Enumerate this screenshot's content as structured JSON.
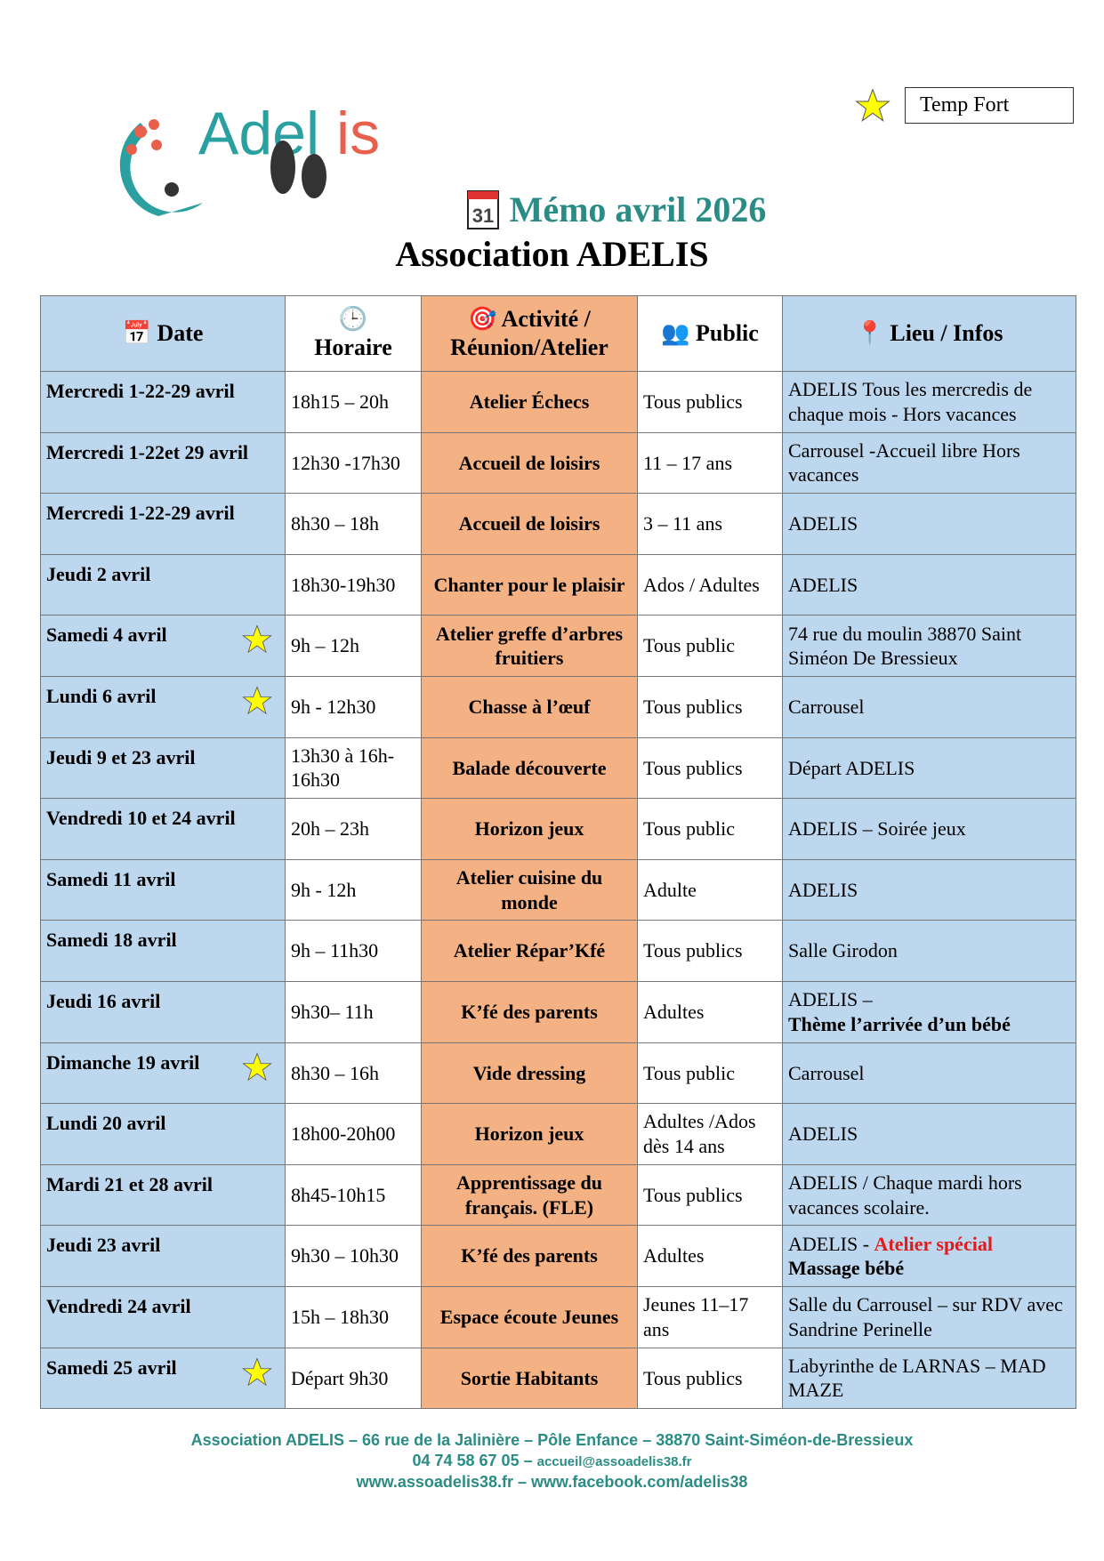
{
  "legend": {
    "label": "Temp Fort",
    "icon": "star-icon"
  },
  "logo": {
    "text": "Adelis"
  },
  "header": {
    "title": "Mémo avril 2026",
    "calendar_day": "31",
    "subtitle": "Association ADELIS"
  },
  "table": {
    "columns": [
      {
        "label": "Date",
        "icon": "calendar-icon"
      },
      {
        "label": "Horaire",
        "icon": "clock-icon"
      },
      {
        "label": "Activité / Réunion/Atelier",
        "icon": "target-icon"
      },
      {
        "label": "Public",
        "icon": "people-icon"
      },
      {
        "label": "Lieu / Infos",
        "icon": "pin-icon"
      }
    ],
    "rows": [
      {
        "date": "Mercredi 1-22-29 avril",
        "time": "18h15 – 20h",
        "activity": "Atelier Échecs",
        "public": "Tous publics",
        "place": "ADELIS Tous les mercredis de chaque mois - Hors vacances",
        "star": false
      },
      {
        "date": "Mercredi 1-22et 29 avril",
        "time": "12h30 -17h30",
        "activity": "Accueil de loisirs",
        "public": "11 – 17 ans",
        "place": "Carrousel -Accueil libre Hors vacances",
        "star": false
      },
      {
        "date": "Mercredi 1-22-29 avril",
        "time": "8h30 – 18h",
        "activity": "Accueil de loisirs",
        "public": "3 – 11 ans",
        "place": "ADELIS",
        "star": false
      },
      {
        "date": "Jeudi 2 avril",
        "time": "18h30-19h30",
        "activity": "Chanter pour le plaisir",
        "public": "Ados / Adultes",
        "place": "ADELIS",
        "star": false
      },
      {
        "date": "Samedi 4 avril",
        "time": "9h – 12h",
        "activity": "Atelier greffe d’arbres fruitiers",
        "public": "Tous public",
        "place": "74 rue du moulin 38870 Saint Siméon De Bressieux",
        "star": true
      },
      {
        "date": "Lundi 6 avril",
        "time": "9h - 12h30",
        "activity": "Chasse à l’œuf",
        "public": "Tous publics",
        "place": "Carrousel",
        "star": true
      },
      {
        "date": "Jeudi 9 et 23 avril",
        "time": "13h30 à 16h-16h30",
        "activity": "Balade découverte",
        "public": "Tous publics",
        "place": "Départ ADELIS",
        "star": false
      },
      {
        "date": "Vendredi 10 et 24 avril",
        "time": "20h – 23h",
        "activity": "Horizon jeux",
        "public": "Tous public",
        "place": "ADELIS – Soirée jeux",
        "star": false
      },
      {
        "date": "Samedi 11 avril",
        "time": "9h - 12h",
        "activity": "Atelier cuisine du monde",
        "public": "Adulte",
        "place": "ADELIS",
        "star": false
      },
      {
        "date": "Samedi 18 avril",
        "time": "9h – 11h30",
        "activity": "Atelier Répar’Kfé",
        "public": "Tous publics",
        "place": "Salle Girodon",
        "star": false
      },
      {
        "date": "Jeudi 16 avril",
        "time": "9h30– 11h",
        "activity": "K’fé des parents",
        "public": "Adultes",
        "place": "ADELIS –",
        "place_bold": "Thème l’arrivée d’un bébé",
        "star": false
      },
      {
        "date": "Dimanche 19 avril",
        "time": "8h30 – 16h",
        "activity": "Vide dressing",
        "public": "Tous public",
        "place": "Carrousel",
        "star": true
      },
      {
        "date": "Lundi 20 avril",
        "time": "18h00-20h00",
        "activity": "Horizon jeux",
        "public": "Adultes /Ados dès 14 ans",
        "place": "ADELIS",
        "star": false
      },
      {
        "date": "Mardi 21 et 28 avril",
        "time": "8h45-10h15",
        "activity": "Apprentissage du français. (FLE)",
        "public": "Tous publics",
        "place": "ADELIS / Chaque mardi hors vacances scolaire.",
        "star": false
      },
      {
        "date": "Jeudi 23 avril",
        "time": "9h30 – 10h30",
        "activity": "K’fé des parents",
        "public": "Adultes",
        "place": "ADELIS -",
        "place_red": "Atelier spécial",
        "place_bold": "Massage bébé",
        "star": false
      },
      {
        "date": "Vendredi 24 avril",
        "time": "15h – 18h30",
        "activity": "Espace écoute Jeunes",
        "public": "Jeunes 11–17 ans",
        "place": "Salle du Carrousel – sur RDV avec Sandrine Perinelle",
        "star": false
      },
      {
        "date": "Samedi 25 avril",
        "time": "Départ 9h30",
        "activity": "Sortie Habitants",
        "public": "Tous publics",
        "place": "Labyrinthe de LARNAS – MAD MAZE",
        "star": true
      }
    ]
  },
  "footer": {
    "line1": "Association ADELIS – 66 rue de la Jalinière – Pôle Enfance – 38870 Saint-Siméon-de-Bressieux",
    "phone": "04 74 58 67 05 –",
    "email": "accueil@assoadelis38.fr",
    "line3": "www.assoadelis38.fr – www.facebook.com/adelis38"
  },
  "colors": {
    "blue": "#bdd7ee",
    "orange": "#f4b183",
    "teal": "#2a8c84",
    "red": "#e01b1b",
    "star": "#ffff00"
  }
}
